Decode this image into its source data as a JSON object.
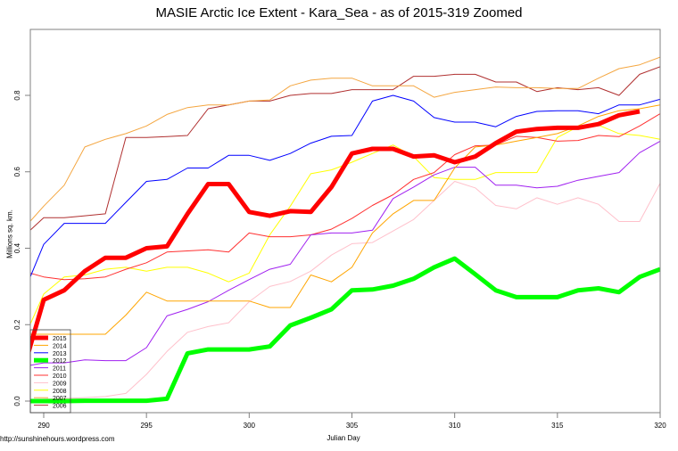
{
  "chart_data": {
    "type": "line",
    "title": "MASIE Arctic Ice Extent - Kara_Sea - as of 2015-319 Zoomed",
    "xlabel": "Julian Day",
    "ylabel": "Millions sq. km.",
    "credit": "http://sunshinehours.wordpress.com",
    "xlim": [
      288.65,
      320
    ],
    "ylim": [
      -0.03,
      0.97
    ],
    "x_ticks": [
      290,
      295,
      300,
      305,
      310,
      315,
      320
    ],
    "y_ticks": [
      0.0,
      0.2,
      0.4,
      0.6,
      0.8
    ],
    "y_tick_labels": [
      "0.0",
      "0.2",
      "0.4",
      "0.6",
      "0.8"
    ],
    "grid": false,
    "legend_position": "bottom-left",
    "x": [
      289,
      290,
      291,
      292,
      293,
      294,
      295,
      296,
      297,
      298,
      299,
      300,
      301,
      302,
      303,
      304,
      305,
      306,
      307,
      308,
      309,
      310,
      311,
      312,
      313,
      314,
      315,
      316,
      317,
      318,
      319,
      320
    ],
    "series": [
      {
        "name": "2015",
        "color": "#ff0000",
        "width": 5,
        "values": [
          0.08,
          0.265,
          0.29,
          0.34,
          0.375,
          0.375,
          0.4,
          0.405,
          0.49,
          0.568,
          0.568,
          0.495,
          0.485,
          0.497,
          0.495,
          0.56,
          0.648,
          0.66,
          0.66,
          0.64,
          0.643,
          0.625,
          0.64,
          0.675,
          0.705,
          0.712,
          0.715,
          0.715,
          0.725,
          0.748,
          0.758,
          null
        ]
      },
      {
        "name": "2014",
        "color": "#ffa500",
        "width": 1,
        "values": [
          0.175,
          0.175,
          0.175,
          0.175,
          0.175,
          0.225,
          0.285,
          0.262,
          0.262,
          0.262,
          0.262,
          0.262,
          0.245,
          0.245,
          0.33,
          0.312,
          0.35,
          0.44,
          0.49,
          0.525,
          0.525,
          0.61,
          0.665,
          0.67,
          0.68,
          0.69,
          0.7,
          0.72,
          0.745,
          0.76,
          0.765,
          0.775
        ]
      },
      {
        "name": "2013",
        "color": "#0000ff",
        "width": 1,
        "values": [
          0.28,
          0.41,
          0.465,
          0.465,
          0.465,
          0.52,
          0.575,
          0.58,
          0.61,
          0.61,
          0.643,
          0.643,
          0.63,
          0.648,
          0.675,
          0.693,
          0.695,
          0.785,
          0.8,
          0.785,
          0.742,
          0.73,
          0.73,
          0.718,
          0.745,
          0.758,
          0.76,
          0.76,
          0.752,
          0.775,
          0.775,
          0.79
        ]
      },
      {
        "name": "2012",
        "color": "#00ff00",
        "width": 5,
        "values": [
          0.0,
          0.0,
          0.0,
          0.001,
          0.001,
          0.001,
          0.001,
          0.006,
          0.125,
          0.135,
          0.135,
          0.135,
          0.143,
          0.198,
          0.218,
          0.24,
          0.29,
          0.292,
          0.302,
          0.32,
          0.35,
          0.373,
          0.332,
          0.29,
          0.272,
          0.272,
          0.272,
          0.29,
          0.295,
          0.285,
          0.325,
          0.345
        ]
      },
      {
        "name": "2011",
        "color": "#a020f0",
        "width": 1,
        "values": [
          0.09,
          0.1,
          0.1,
          0.108,
          0.106,
          0.106,
          0.14,
          0.223,
          0.24,
          0.26,
          0.29,
          0.318,
          0.345,
          0.358,
          0.435,
          0.44,
          0.44,
          0.447,
          0.53,
          0.56,
          0.592,
          0.612,
          0.612,
          0.565,
          0.565,
          0.558,
          0.562,
          0.578,
          0.588,
          0.598,
          0.65,
          0.68
        ]
      },
      {
        "name": "2010",
        "color": "#ff3030",
        "width": 1,
        "values": [
          0.34,
          0.325,
          0.318,
          0.32,
          0.325,
          0.345,
          0.362,
          0.39,
          0.393,
          0.396,
          0.39,
          0.44,
          0.43,
          0.43,
          0.435,
          0.45,
          0.478,
          0.512,
          0.54,
          0.58,
          0.598,
          0.645,
          0.668,
          0.67,
          0.693,
          0.69,
          0.68,
          0.682,
          0.695,
          0.692,
          0.72,
          0.752
        ]
      },
      {
        "name": "2009",
        "color": "#ffc0cb",
        "width": 1,
        "values": [
          0.0,
          0.005,
          0.007,
          0.009,
          0.012,
          0.02,
          0.07,
          0.13,
          0.18,
          0.195,
          0.205,
          0.26,
          0.3,
          0.313,
          0.34,
          0.382,
          0.412,
          0.415,
          0.445,
          0.475,
          0.525,
          0.575,
          0.558,
          0.512,
          0.503,
          0.532,
          0.515,
          0.532,
          0.515,
          0.47,
          0.47,
          0.57
        ]
      },
      {
        "name": "2008",
        "color": "#ffff00",
        "width": 1,
        "values": [
          0.16,
          0.28,
          0.325,
          0.33,
          0.345,
          0.35,
          0.34,
          0.35,
          0.35,
          0.335,
          0.312,
          0.335,
          0.435,
          0.51,
          0.595,
          0.605,
          0.625,
          0.648,
          0.67,
          0.64,
          0.585,
          0.58,
          0.58,
          0.598,
          0.598,
          0.598,
          0.69,
          0.718,
          0.722,
          0.7,
          0.695,
          0.685
        ]
      },
      {
        "name": "2007",
        "color": "#f4a640",
        "width": 1,
        "values": [
          0.45,
          0.51,
          0.565,
          0.665,
          0.685,
          0.7,
          0.72,
          0.75,
          0.768,
          0.775,
          0.775,
          0.785,
          0.788,
          0.825,
          0.84,
          0.845,
          0.845,
          0.825,
          0.825,
          0.825,
          0.795,
          0.808,
          0.815,
          0.822,
          0.82,
          0.82,
          0.818,
          0.818,
          0.845,
          0.87,
          0.88,
          0.9
        ]
      },
      {
        "name": "2006",
        "color": "#b03030",
        "width": 1,
        "values": [
          0.43,
          0.48,
          0.48,
          0.485,
          0.49,
          0.69,
          0.69,
          0.692,
          0.695,
          0.765,
          0.775,
          0.785,
          0.785,
          0.8,
          0.805,
          0.805,
          0.815,
          0.815,
          0.815,
          0.85,
          0.85,
          0.855,
          0.855,
          0.835,
          0.835,
          0.81,
          0.82,
          0.815,
          0.82,
          0.8,
          0.855,
          0.875
        ]
      }
    ]
  },
  "legend": {
    "items": [
      "2015",
      "2014",
      "2013",
      "2012",
      "2011",
      "2010",
      "2009",
      "2008",
      "2007",
      "2006"
    ]
  }
}
